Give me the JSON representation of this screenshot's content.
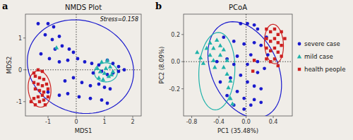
{
  "chart_data": [
    {
      "type": "scatter",
      "panel": "a",
      "title": "NMDS Plot",
      "xlabel": "MDS1",
      "ylabel": "MDS2",
      "annotations": [
        "Stress=0.158"
      ],
      "xlim": [
        -1.8,
        2.3
      ],
      "ylim": [
        -1.45,
        1.75
      ],
      "xticks": [
        -1,
        0,
        1,
        2
      ],
      "yticks": [
        -1,
        0,
        1
      ],
      "crosshair": {
        "x": 0,
        "y": 0
      },
      "series": [
        {
          "name": "severe case",
          "color": "#1a1acd",
          "marker": "circle",
          "x": [
            -1.35,
            -1.0,
            -0.8,
            -1.1,
            -0.85,
            -0.6,
            -0.75,
            -0.5,
            -0.25,
            -0.1,
            -1.25,
            -0.95,
            -0.6,
            -0.3,
            0.05,
            0.3,
            0.55,
            0.8,
            1.1,
            1.3,
            1.5,
            0.6,
            0.9,
            1.1,
            1.3,
            1.5,
            1.7,
            -0.4,
            -0.1,
            0.2,
            0.5,
            0.8,
            1.0,
            1.2,
            -1.0,
            -0.6,
            -0.3,
            0.1,
            0.5,
            0.9,
            1.1
          ],
          "values": [
            1.45,
            1.45,
            1.35,
            1.1,
            0.95,
            1.05,
            0.65,
            0.75,
            0.65,
            0.55,
            0.5,
            0.35,
            0.25,
            0.3,
            0.35,
            0.25,
            0.2,
            0.15,
            0.3,
            0.2,
            0.1,
            -0.1,
            -0.05,
            -0.15,
            -0.1,
            -0.05,
            0.0,
            -0.35,
            -0.25,
            -0.4,
            -0.5,
            -0.45,
            -0.55,
            -0.6,
            -0.7,
            -0.8,
            -0.75,
            -0.85,
            -0.9,
            -0.95,
            -1.05
          ],
          "ellipse": {
            "cx": 0.15,
            "cy": 0.1,
            "width": 3.8,
            "height": 2.9,
            "angle": -12
          }
        },
        {
          "name": "mild case",
          "color": "#20b2aa",
          "marker": "triangle",
          "x": [
            -0.7,
            0.75,
            0.85,
            1.0,
            1.15,
            1.3,
            1.05,
            0.8,
            1.2,
            0.9,
            1.1,
            0.95,
            1.25
          ],
          "values": [
            0.7,
            0.05,
            -0.05,
            -0.1,
            -0.2,
            -0.05,
            0.05,
            -0.25,
            0.1,
            0.25,
            0.3,
            -0.3,
            -0.15
          ],
          "ellipse": {
            "cx": 1.05,
            "cy": -0.08,
            "width": 0.82,
            "height": 0.6,
            "angle": 0
          }
        },
        {
          "name": "health people",
          "color": "#cd2020",
          "marker": "square",
          "x": [
            -1.5,
            -1.35,
            -1.2,
            -1.45,
            -1.3,
            -1.15,
            -1.5,
            -1.35,
            -1.2,
            -1.05,
            -1.45,
            -1.3,
            -1.15,
            -1.0,
            -1.2,
            -1.35,
            -1.5,
            -1.0,
            -1.15,
            -1.3,
            -1.45,
            -1.6,
            -1.1
          ],
          "values": [
            -0.1,
            0.0,
            -0.05,
            -0.2,
            -0.25,
            -0.3,
            -0.4,
            -0.45,
            -0.5,
            -0.45,
            -0.6,
            -0.65,
            -0.7,
            -0.6,
            -0.8,
            -0.85,
            -0.9,
            -0.85,
            -0.95,
            -1.0,
            -1.1,
            -1.0,
            -1.1
          ],
          "ellipse": {
            "cx": -1.3,
            "cy": -0.6,
            "width": 0.8,
            "height": 1.15,
            "angle": 8
          }
        }
      ]
    },
    {
      "type": "scatter",
      "panel": "b",
      "title": "PCoA",
      "xlabel": "PC1 (35.48%)",
      "ylabel": "PC2 (8.09%)",
      "xlim": [
        -0.92,
        0.68
      ],
      "ylim": [
        -0.4,
        0.35
      ],
      "xticks": [
        -0.8,
        -0.4,
        {
          "value": 0.0,
          "label": "0.0"
        },
        0.4
      ],
      "yticks": [
        -0.2,
        {
          "value": 0.0,
          "label": "0.0"
        },
        0.2
      ],
      "crosshair": {
        "x": 0,
        "y": 0
      },
      "series": [
        {
          "color": "#1a1acd",
          "marker": "circle",
          "x": [
            -0.08,
            0.02,
            0.12,
            0.17,
            -0.33,
            -0.18,
            -0.03,
            0.12,
            0.22,
            0.07,
            -0.13,
            -0.28,
            -0.43,
            -0.18,
            0.02,
            0.17,
            0.27,
            -0.08,
            -0.23,
            -0.38,
            0.02,
            0.12,
            0.22,
            -0.13,
            -0.28,
            -0.03,
            0.12,
            0.22,
            -0.18,
            -0.03,
            0.07,
            0.32,
            0.3,
            0.17
          ],
          "values": [
            0.28,
            0.28,
            0.27,
            0.24,
            0.18,
            0.15,
            0.13,
            0.14,
            0.12,
            0.05,
            0.04,
            0.02,
            0.0,
            -0.02,
            -0.02,
            0.0,
            -0.05,
            -0.1,
            -0.12,
            -0.15,
            -0.15,
            -0.18,
            -0.2,
            -0.22,
            -0.25,
            -0.27,
            -0.28,
            -0.3,
            -0.32,
            -0.35,
            -0.32,
            0.05,
            0.18,
            -0.08
          ],
          "ellipse": {
            "cx": -0.02,
            "cy": -0.06,
            "width": 1.12,
            "height": 0.65,
            "angle": -18
          }
        },
        {
          "color": "#20b2aa",
          "marker": "triangle",
          "x": [
            -0.72,
            -0.67,
            -0.63,
            -0.58,
            -0.53,
            -0.48,
            -0.53,
            -0.48,
            -0.46,
            -0.43,
            -0.38,
            -0.38,
            -0.33,
            -0.33,
            -0.28,
            -0.26,
            -0.28,
            -0.23,
            -0.23,
            -0.2
          ],
          "values": [
            0.07,
            0.03,
            -0.01,
            0.1,
            0.14,
            0.1,
            0.05,
            0.01,
            -0.04,
            0.16,
            0.12,
            0.05,
            0.09,
            -0.04,
            -0.09,
            -0.19,
            0.01,
            -0.14,
            -0.27,
            -0.31
          ],
          "ellipse": {
            "cx": -0.43,
            "cy": -0.07,
            "width": 0.52,
            "height": 0.58,
            "angle": -25
          }
        },
        {
          "color": "#cd2020",
          "marker": "square",
          "x": [
            0.3,
            0.36,
            0.42,
            0.3,
            0.36,
            0.42,
            0.47,
            0.52,
            0.47,
            0.3,
            0.36,
            0.42,
            0.47,
            0.52,
            0.57,
            0.3,
            0.36,
            0.42,
            0.47,
            0.52,
            0.12,
            0.1
          ],
          "values": [
            0.24,
            0.22,
            0.24,
            0.17,
            0.15,
            0.17,
            0.2,
            0.22,
            0.14,
            0.1,
            0.08,
            0.1,
            0.07,
            0.12,
            0.17,
            0.02,
            0.0,
            0.02,
            -0.03,
            0.04,
            0.01,
            -0.07
          ],
          "ellipse": {
            "cx": 0.41,
            "cy": 0.13,
            "width": 0.3,
            "height": 0.27,
            "angle": -55
          }
        }
      ]
    }
  ]
}
